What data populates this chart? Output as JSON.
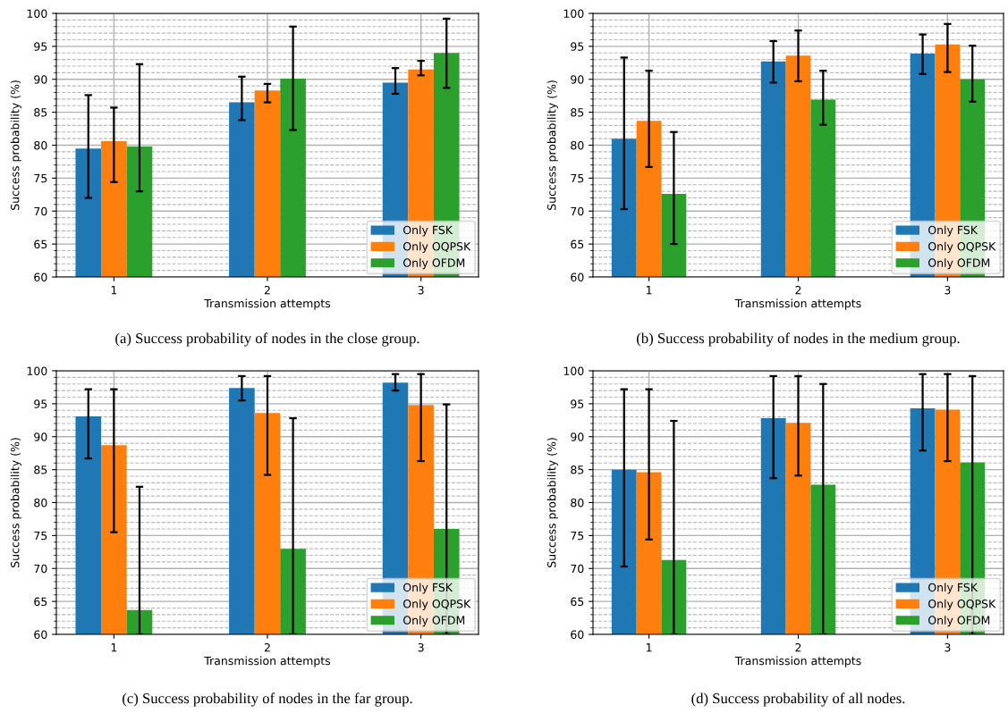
{
  "chart_data": [
    {
      "type": "bar",
      "xlabel": "Transmission attempts",
      "ylabel": "Success probability (%)",
      "categories": [
        "1",
        "2",
        "3"
      ],
      "ylim": [
        60,
        100
      ],
      "yticks": [
        60,
        {
          "value": 61,
          "label": null
        },
        {
          "value": 62,
          "label": null
        },
        {
          "value": 63,
          "label": null
        },
        {
          "value": 64,
          "label": null
        },
        65,
        {
          "value": 66,
          "label": null
        },
        {
          "value": 67,
          "label": null
        },
        {
          "value": 68,
          "label": null
        },
        {
          "value": 69,
          "label": null
        },
        70,
        {
          "value": 71,
          "label": null
        },
        {
          "value": 72,
          "label": null
        },
        {
          "value": 73,
          "label": null
        },
        {
          "value": 74,
          "label": null
        },
        75,
        {
          "value": 76,
          "label": null
        },
        {
          "value": 77,
          "label": null
        },
        {
          "value": 78,
          "label": null
        },
        {
          "value": 79,
          "label": null
        },
        80,
        {
          "value": 81,
          "label": null
        },
        {
          "value": 82,
          "label": null
        },
        {
          "value": 83,
          "label": null
        },
        {
          "value": 84,
          "label": null
        },
        85,
        {
          "value": 86,
          "label": null
        },
        {
          "value": 87,
          "label": null
        },
        {
          "value": 88,
          "label": null
        },
        {
          "value": 89,
          "label": null
        },
        90,
        {
          "value": 91,
          "label": null
        },
        {
          "value": 92,
          "label": null
        },
        {
          "value": 93,
          "label": null
        },
        {
          "value": 94,
          "label": null
        },
        95,
        {
          "value": 96,
          "label": null
        },
        {
          "value": 97,
          "label": null
        },
        {
          "value": 98,
          "label": null
        },
        {
          "value": 99,
          "label": null
        },
        100
      ],
      "grid": true,
      "legend": "bottom right",
      "annotations": [
        "(a) Success probability of nodes in the close group."
      ],
      "series": [
        {
          "name": "Only FSK",
          "color": "#1f77b4",
          "values": [
            79.5,
            86.5,
            89.5
          ],
          "errors": [
            [
              72,
              87.6
            ],
            [
              83.8,
              90.4
            ],
            [
              87.8,
              91.7
            ]
          ]
        },
        {
          "name": "Only OQPSK",
          "color": "#ff7f0e",
          "values": [
            80.6,
            88.3,
            91.5
          ],
          "errors": [
            [
              74.4,
              85.7
            ],
            [
              86.5,
              89.3
            ],
            [
              90.6,
              92.8
            ]
          ]
        },
        {
          "name": "Only OFDM",
          "color": "#2ca02c",
          "values": [
            79.8,
            90.1,
            94
          ],
          "errors": [
            [
              73,
              92.3
            ],
            [
              82.3,
              98
            ],
            [
              88.7,
              99.2
            ]
          ]
        }
      ]
    },
    {
      "type": "bar",
      "xlabel": "Transmission attempts",
      "ylabel": "Success probability (%)",
      "categories": [
        "1",
        "2",
        "3"
      ],
      "ylim": [
        60,
        100
      ],
      "yticks": [
        60,
        {
          "value": 61,
          "label": null
        },
        {
          "value": 62,
          "label": null
        },
        {
          "value": 63,
          "label": null
        },
        {
          "value": 64,
          "label": null
        },
        65,
        {
          "value": 66,
          "label": null
        },
        {
          "value": 67,
          "label": null
        },
        {
          "value": 68,
          "label": null
        },
        {
          "value": 69,
          "label": null
        },
        70,
        {
          "value": 71,
          "label": null
        },
        {
          "value": 72,
          "label": null
        },
        {
          "value": 73,
          "label": null
        },
        {
          "value": 74,
          "label": null
        },
        75,
        {
          "value": 76,
          "label": null
        },
        {
          "value": 77,
          "label": null
        },
        {
          "value": 78,
          "label": null
        },
        {
          "value": 79,
          "label": null
        },
        80,
        {
          "value": 81,
          "label": null
        },
        {
          "value": 82,
          "label": null
        },
        {
          "value": 83,
          "label": null
        },
        {
          "value": 84,
          "label": null
        },
        85,
        {
          "value": 86,
          "label": null
        },
        {
          "value": 87,
          "label": null
        },
        {
          "value": 88,
          "label": null
        },
        {
          "value": 89,
          "label": null
        },
        90,
        {
          "value": 91,
          "label": null
        },
        {
          "value": 92,
          "label": null
        },
        {
          "value": 93,
          "label": null
        },
        {
          "value": 94,
          "label": null
        },
        95,
        {
          "value": 96,
          "label": null
        },
        {
          "value": 97,
          "label": null
        },
        {
          "value": 98,
          "label": null
        },
        {
          "value": 99,
          "label": null
        },
        100
      ],
      "grid": true,
      "legend": "bottom right",
      "annotations": [
        "(b) Success probability of nodes in the medium group."
      ],
      "series": [
        {
          "name": "Only FSK",
          "color": "#1f77b4",
          "values": [
            81,
            92.7,
            93.9
          ],
          "errors": [
            [
              70.3,
              93.3
            ],
            [
              89.5,
              95.8
            ],
            [
              90.8,
              96.8
            ]
          ]
        },
        {
          "name": "Only OQPSK",
          "color": "#ff7f0e",
          "values": [
            83.7,
            93.6,
            95.3
          ],
          "errors": [
            [
              76.7,
              91.3
            ],
            [
              89.7,
              97.4
            ],
            [
              91.1,
              98.4
            ]
          ]
        },
        {
          "name": "Only OFDM",
          "color": "#2ca02c",
          "values": [
            72.6,
            86.9,
            90
          ],
          "errors": [
            [
              65,
              82
            ],
            [
              83.1,
              91.3
            ],
            [
              86.6,
              95.1
            ]
          ]
        }
      ]
    },
    {
      "type": "bar",
      "xlabel": "Transmission attempts",
      "ylabel": "Success probability (%)",
      "categories": [
        "1",
        "2",
        "3"
      ],
      "ylim": [
        60,
        100
      ],
      "yticks": [
        60,
        {
          "value": 61,
          "label": null
        },
        {
          "value": 62,
          "label": null
        },
        {
          "value": 63,
          "label": null
        },
        {
          "value": 64,
          "label": null
        },
        65,
        {
          "value": 66,
          "label": null
        },
        {
          "value": 67,
          "label": null
        },
        {
          "value": 68,
          "label": null
        },
        {
          "value": 69,
          "label": null
        },
        70,
        {
          "value": 71,
          "label": null
        },
        {
          "value": 72,
          "label": null
        },
        {
          "value": 73,
          "label": null
        },
        {
          "value": 74,
          "label": null
        },
        75,
        {
          "value": 76,
          "label": null
        },
        {
          "value": 77,
          "label": null
        },
        {
          "value": 78,
          "label": null
        },
        {
          "value": 79,
          "label": null
        },
        80,
        {
          "value": 81,
          "label": null
        },
        {
          "value": 82,
          "label": null
        },
        {
          "value": 83,
          "label": null
        },
        {
          "value": 84,
          "label": null
        },
        85,
        {
          "value": 86,
          "label": null
        },
        {
          "value": 87,
          "label": null
        },
        {
          "value": 88,
          "label": null
        },
        {
          "value": 89,
          "label": null
        },
        90,
        {
          "value": 91,
          "label": null
        },
        {
          "value": 92,
          "label": null
        },
        {
          "value": 93,
          "label": null
        },
        {
          "value": 94,
          "label": null
        },
        95,
        {
          "value": 96,
          "label": null
        },
        {
          "value": 97,
          "label": null
        },
        {
          "value": 98,
          "label": null
        },
        {
          "value": 99,
          "label": null
        },
        100
      ],
      "grid": true,
      "legend": "bottom right",
      "annotations": [
        "(c) Success probability of nodes in the far group."
      ],
      "series": [
        {
          "name": "Only FSK",
          "color": "#1f77b4",
          "values": [
            93.1,
            97.4,
            98.2
          ],
          "errors": [
            [
              86.7,
              97.2
            ],
            [
              95.5,
              99.2
            ],
            [
              97,
              99.5
            ]
          ]
        },
        {
          "name": "Only OQPSK",
          "color": "#ff7f0e",
          "values": [
            88.7,
            93.6,
            94.8
          ],
          "errors": [
            [
              75.5,
              97.2
            ],
            [
              84.2,
              99.2
            ],
            [
              86.3,
              99.5
            ]
          ]
        },
        {
          "name": "Only OFDM",
          "color": "#2ca02c",
          "values": [
            63.7,
            73,
            76
          ],
          "errors": [
            [
              60,
              82.4
            ],
            [
              60,
              92.8
            ],
            [
              60,
              94.9
            ]
          ]
        }
      ]
    },
    {
      "type": "bar",
      "xlabel": "Transmission attempts",
      "ylabel": "Success probability (%)",
      "categories": [
        "1",
        "2",
        "3"
      ],
      "ylim": [
        60,
        100
      ],
      "yticks": [
        60,
        {
          "value": 61,
          "label": null
        },
        {
          "value": 62,
          "label": null
        },
        {
          "value": 63,
          "label": null
        },
        {
          "value": 64,
          "label": null
        },
        65,
        {
          "value": 66,
          "label": null
        },
        {
          "value": 67,
          "label": null
        },
        {
          "value": 68,
          "label": null
        },
        {
          "value": 69,
          "label": null
        },
        70,
        {
          "value": 71,
          "label": null
        },
        {
          "value": 72,
          "label": null
        },
        {
          "value": 73,
          "label": null
        },
        {
          "value": 74,
          "label": null
        },
        75,
        {
          "value": 76,
          "label": null
        },
        {
          "value": 77,
          "label": null
        },
        {
          "value": 78,
          "label": null
        },
        {
          "value": 79,
          "label": null
        },
        80,
        {
          "value": 81,
          "label": null
        },
        {
          "value": 82,
          "label": null
        },
        {
          "value": 83,
          "label": null
        },
        {
          "value": 84,
          "label": null
        },
        85,
        {
          "value": 86,
          "label": null
        },
        {
          "value": 87,
          "label": null
        },
        {
          "value": 88,
          "label": null
        },
        {
          "value": 89,
          "label": null
        },
        90,
        {
          "value": 91,
          "label": null
        },
        {
          "value": 92,
          "label": null
        },
        {
          "value": 93,
          "label": null
        },
        {
          "value": 94,
          "label": null
        },
        95,
        {
          "value": 96,
          "label": null
        },
        {
          "value": 97,
          "label": null
        },
        {
          "value": 98,
          "label": null
        },
        {
          "value": 99,
          "label": null
        },
        100
      ],
      "grid": true,
      "legend": "bottom right",
      "annotations": [
        "(d) Success probability of all nodes."
      ],
      "series": [
        {
          "name": "Only FSK",
          "color": "#1f77b4",
          "values": [
            85,
            92.8,
            94.3
          ],
          "errors": [
            [
              70.3,
              97.2
            ],
            [
              83.7,
              99.2
            ],
            [
              87.9,
              99.5
            ]
          ]
        },
        {
          "name": "Only OQPSK",
          "color": "#ff7f0e",
          "values": [
            84.6,
            92.1,
            94.1
          ],
          "errors": [
            [
              74.4,
              97.2
            ],
            [
              84.1,
              99.2
            ],
            [
              86.3,
              99.5
            ]
          ]
        },
        {
          "name": "Only OFDM",
          "color": "#2ca02c",
          "values": [
            71.3,
            82.7,
            86.1
          ],
          "errors": [
            [
              60,
              92.4
            ],
            [
              60,
              98
            ],
            [
              60,
              99.2
            ]
          ]
        }
      ]
    }
  ]
}
